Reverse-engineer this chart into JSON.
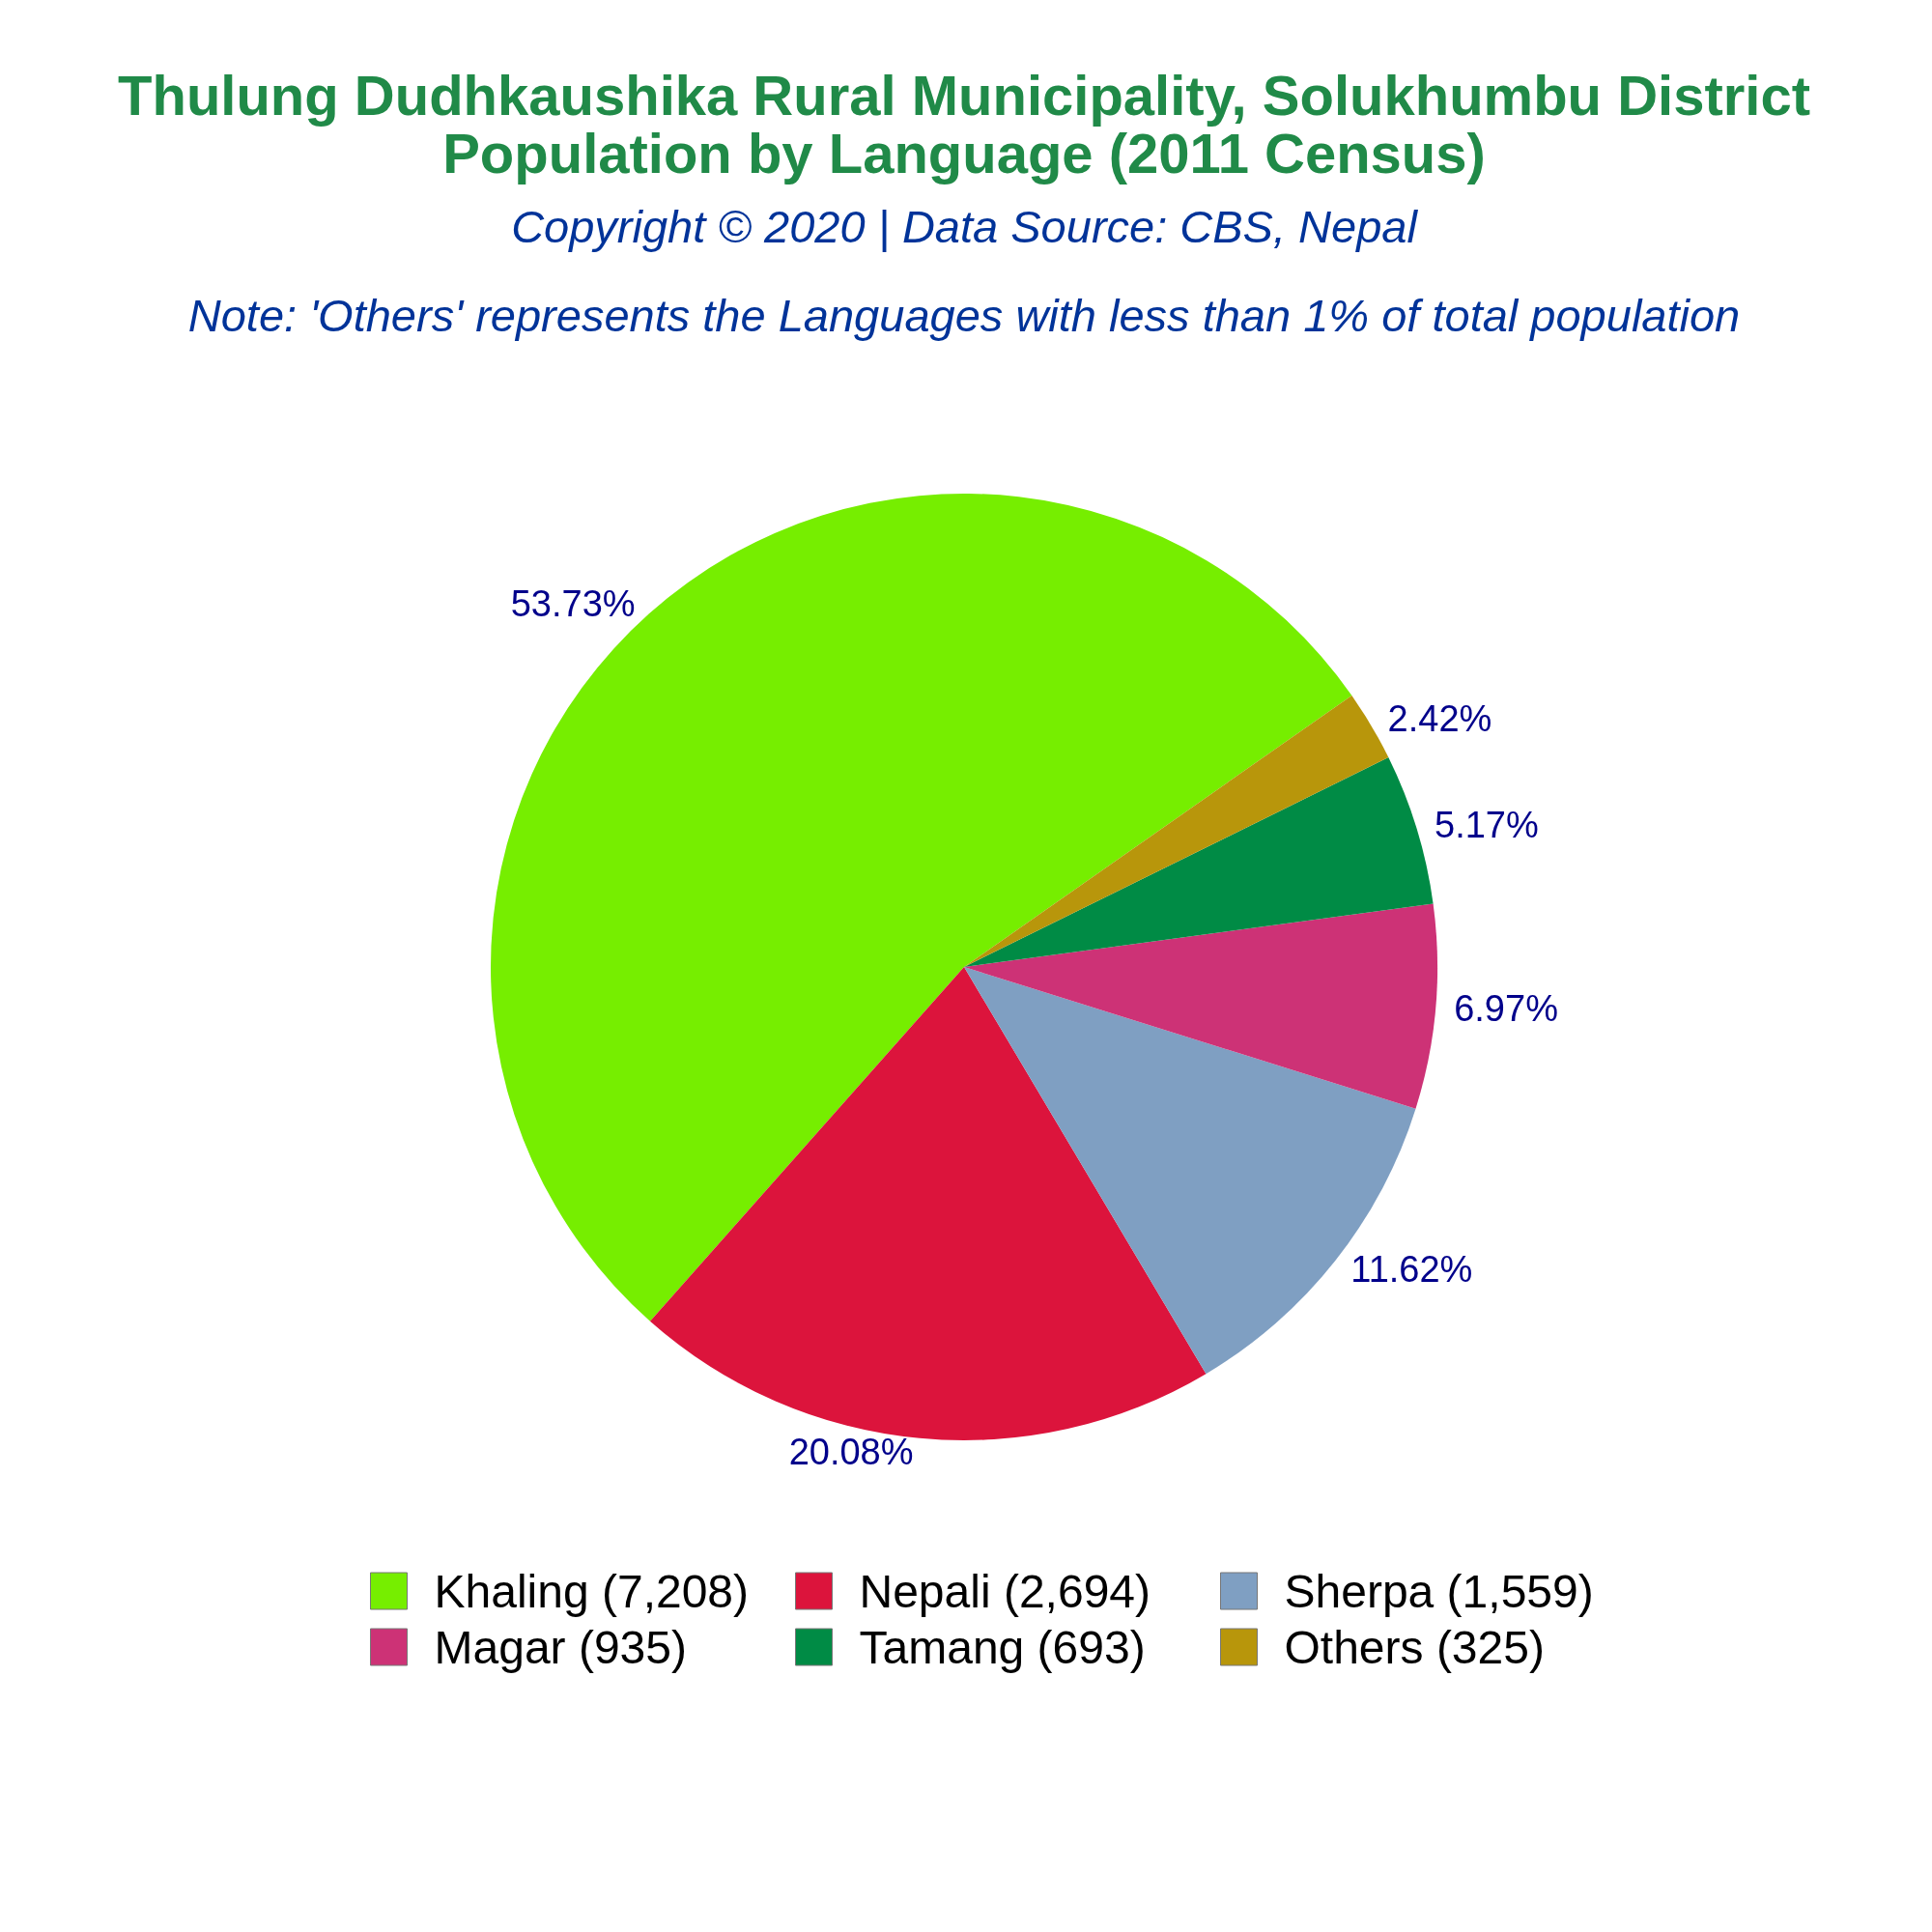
{
  "chart_data": {
    "type": "pie",
    "title": "Thulung Dudhkaushika Rural Municipality, Solukhumbu District\nPopulation by Language (2011 Census)",
    "subtitle": "Copyright © 2020 | Data Source: CBS, Nepal",
    "annotations": [
      "Note: 'Others' represents the Languages with less than 1% of total population"
    ],
    "categories": [
      "Khaling (7,208)",
      "Nepali (2,694)",
      "Sherpa (1,559)",
      "Magar (935)",
      "Tamang (693)",
      "Others (325)"
    ],
    "values": [
      53.73,
      20.08,
      11.62,
      6.97,
      5.17,
      2.42
    ],
    "value_labels": [
      "53.73%",
      "20.08%",
      "11.62%",
      "6.97%",
      "5.17%",
      "2.42%"
    ],
    "colors": [
      "#76ee00",
      "#dc143c",
      "#7f9fc2",
      "#cd3276",
      "#008b45",
      "#b8960b"
    ],
    "legend": "bottom"
  }
}
